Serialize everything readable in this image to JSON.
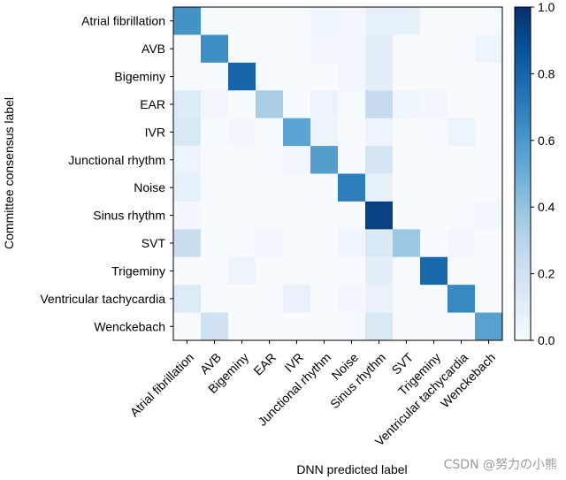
{
  "chart_data": {
    "type": "heatmap",
    "xlabel": "DNN predicted label",
    "ylabel": "Committee consensus label",
    "categories": [
      "Atrial fibrillation",
      "AVB",
      "Bigeminy",
      "EAR",
      "IVR",
      "Junctional rhythm",
      "Noise",
      "Sinus rhythm",
      "SVT",
      "Trigeminy",
      "Ventricular tachycardia",
      "Wenckebach"
    ],
    "matrix": [
      [
        0.62,
        0.01,
        0.0,
        0.0,
        0.01,
        0.04,
        0.02,
        0.08,
        0.08,
        0.0,
        0.01,
        0.01
      ],
      [
        0.0,
        0.64,
        0.0,
        0.0,
        0.01,
        0.02,
        0.03,
        0.1,
        0.0,
        0.0,
        0.0,
        0.05
      ],
      [
        0.01,
        0.0,
        0.8,
        0.0,
        0.0,
        0.0,
        0.02,
        0.1,
        0.0,
        0.0,
        0.0,
        0.0
      ],
      [
        0.13,
        0.03,
        0.0,
        0.34,
        0.0,
        0.06,
        0.01,
        0.24,
        0.04,
        0.02,
        0.0,
        0.0
      ],
      [
        0.15,
        0.0,
        0.02,
        0.0,
        0.55,
        0.05,
        0.0,
        0.06,
        0.0,
        0.0,
        0.05,
        0.0
      ],
      [
        0.05,
        0.0,
        0.0,
        0.0,
        0.03,
        0.57,
        0.0,
        0.17,
        0.0,
        0.0,
        0.0,
        0.0
      ],
      [
        0.08,
        0.0,
        0.0,
        0.0,
        0.0,
        0.0,
        0.7,
        0.08,
        0.0,
        0.0,
        0.0,
        0.0
      ],
      [
        0.02,
        0.0,
        0.0,
        0.0,
        0.0,
        0.0,
        0.01,
        0.94,
        0.0,
        0.0,
        0.0,
        0.02
      ],
      [
        0.23,
        0.0,
        0.0,
        0.03,
        0.01,
        0.0,
        0.04,
        0.14,
        0.38,
        0.0,
        0.03,
        0.0
      ],
      [
        0.0,
        0.0,
        0.05,
        0.0,
        0.0,
        0.0,
        0.0,
        0.09,
        0.0,
        0.79,
        0.0,
        0.0
      ],
      [
        0.13,
        0.0,
        0.0,
        0.0,
        0.07,
        0.0,
        0.02,
        0.07,
        0.0,
        0.0,
        0.66,
        0.0
      ],
      [
        0.0,
        0.2,
        0.0,
        0.0,
        0.0,
        0.0,
        0.01,
        0.15,
        0.0,
        0.0,
        0.0,
        0.56
      ]
    ],
    "zlim": [
      0.0,
      1.0
    ],
    "colorbar_ticks": [
      "0.0",
      "0.2",
      "0.4",
      "0.6",
      "0.8",
      "1.0"
    ],
    "colormap": [
      "#f7fbff",
      "#deebf7",
      "#c6dbef",
      "#9ecae1",
      "#6baed6",
      "#4292c6",
      "#2171b5",
      "#08519c",
      "#08306b"
    ]
  },
  "watermark": "CSDN @努力の小熊"
}
